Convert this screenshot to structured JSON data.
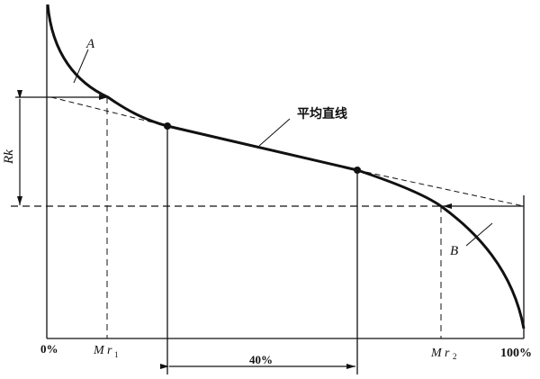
{
  "labels": {
    "curve_a": "A",
    "curve_b": "B",
    "rk": "Rk",
    "mean_line": "平均直线",
    "mr1_m": "M",
    "mr1_r": "r",
    "mr1_sub": "1",
    "mr2_m": "M",
    "mr2_r": "r",
    "mr2_sub": "2",
    "zero": "0%",
    "hundred": "100%",
    "span": "40%"
  }
}
